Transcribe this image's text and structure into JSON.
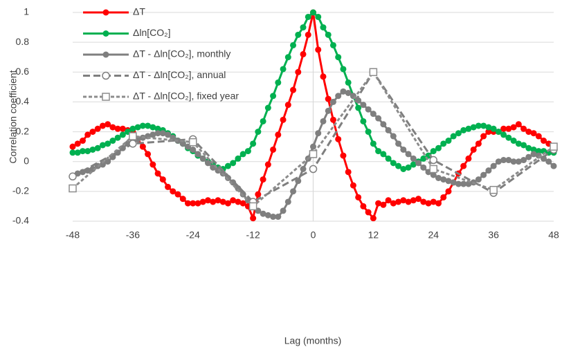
{
  "chart_data": {
    "type": "line",
    "x_label": "Lag (months)",
    "y_label": "Correlation coefficient",
    "xlim": [
      -48,
      48
    ],
    "xticks": [
      -48,
      -36,
      -24,
      -12,
      0,
      12,
      24,
      36,
      48
    ],
    "ylim": [
      -0.4,
      1
    ],
    "yticks": [
      -0.4,
      -0.2,
      0,
      0.2,
      0.4,
      0.6,
      0.8,
      1
    ],
    "grid": true,
    "legend": "upper-left",
    "x": [
      -48,
      -47,
      -46,
      -45,
      -44,
      -43,
      -42,
      -41,
      -40,
      -39,
      -38,
      -37,
      -36,
      -35,
      -34,
      -33,
      -32,
      -31,
      -30,
      -29,
      -28,
      -27,
      -26,
      -25,
      -24,
      -23,
      -22,
      -21,
      -20,
      -19,
      -18,
      -17,
      -16,
      -15,
      -14,
      -13,
      -12,
      -11,
      -10,
      -9,
      -8,
      -7,
      -6,
      -5,
      -4,
      -3,
      -2,
      -1,
      0,
      1,
      2,
      3,
      4,
      5,
      6,
      7,
      8,
      9,
      10,
      11,
      12,
      13,
      14,
      15,
      16,
      17,
      18,
      19,
      20,
      21,
      22,
      23,
      24,
      25,
      26,
      27,
      28,
      29,
      30,
      31,
      32,
      33,
      34,
      35,
      36,
      37,
      38,
      39,
      40,
      41,
      42,
      43,
      44,
      45,
      46,
      47,
      48
    ],
    "series": [
      {
        "name": "ΔT",
        "color": "#ff0000",
        "dash": "solid",
        "marker": "filled-circle",
        "values": [
          0.1,
          0.12,
          0.14,
          0.18,
          0.2,
          0.22,
          0.24,
          0.25,
          0.23,
          0.22,
          0.22,
          0.21,
          0.2,
          0.15,
          0.1,
          0.05,
          -0.02,
          -0.08,
          -0.12,
          -0.17,
          -0.2,
          -0.22,
          -0.25,
          -0.28,
          -0.28,
          -0.28,
          -0.27,
          -0.26,
          -0.27,
          -0.26,
          -0.27,
          -0.28,
          -0.26,
          -0.27,
          -0.28,
          -0.3,
          -0.38,
          -0.22,
          -0.12,
          -0.02,
          0.08,
          0.18,
          0.28,
          0.38,
          0.48,
          0.6,
          0.72,
          0.85,
          1.0,
          0.75,
          0.57,
          0.42,
          0.28,
          0.15,
          0.04,
          -0.07,
          -0.16,
          -0.24,
          -0.3,
          -0.34,
          -0.38,
          -0.28,
          -0.29,
          -0.26,
          -0.28,
          -0.27,
          -0.26,
          -0.27,
          -0.26,
          -0.25,
          -0.27,
          -0.28,
          -0.27,
          -0.28,
          -0.24,
          -0.2,
          -0.14,
          -0.08,
          -0.03,
          0.02,
          0.08,
          0.12,
          0.17,
          0.2,
          0.2,
          0.2,
          0.22,
          0.22,
          0.23,
          0.25,
          0.22,
          0.2,
          0.19,
          0.17,
          0.14,
          0.12,
          0.1
        ]
      },
      {
        "name": "Δln[CO₂]",
        "color": "#00b050",
        "dash": "solid",
        "marker": "filled-circle",
        "values": [
          0.06,
          0.06,
          0.07,
          0.07,
          0.08,
          0.09,
          0.11,
          0.12,
          0.14,
          0.16,
          0.18,
          0.2,
          0.22,
          0.23,
          0.24,
          0.24,
          0.23,
          0.22,
          0.21,
          0.19,
          0.17,
          0.14,
          0.12,
          0.09,
          0.07,
          0.04,
          0.02,
          0.0,
          -0.02,
          -0.04,
          -0.05,
          -0.03,
          -0.01,
          0.02,
          0.05,
          0.07,
          0.12,
          0.2,
          0.27,
          0.36,
          0.44,
          0.53,
          0.62,
          0.7,
          0.78,
          0.85,
          0.9,
          0.97,
          1.0,
          0.97,
          0.9,
          0.85,
          0.78,
          0.7,
          0.62,
          0.53,
          0.44,
          0.36,
          0.27,
          0.2,
          0.12,
          0.07,
          0.05,
          0.02,
          -0.01,
          -0.03,
          -0.05,
          -0.04,
          -0.02,
          0.0,
          0.02,
          0.04,
          0.07,
          0.09,
          0.12,
          0.14,
          0.17,
          0.19,
          0.21,
          0.22,
          0.23,
          0.24,
          0.24,
          0.23,
          0.22,
          0.2,
          0.18,
          0.16,
          0.14,
          0.12,
          0.11,
          0.09,
          0.08,
          0.07,
          0.07,
          0.06,
          0.06
        ]
      },
      {
        "name": "ΔT - Δln[CO₂], monthly",
        "color": "#7f7f7f",
        "dash": "solid",
        "marker": "filled-circle",
        "values": [
          -0.1,
          -0.08,
          -0.07,
          -0.06,
          -0.05,
          -0.03,
          -0.02,
          0.0,
          0.03,
          0.06,
          0.09,
          0.12,
          0.14,
          0.15,
          0.16,
          0.17,
          0.18,
          0.19,
          0.19,
          0.18,
          0.16,
          0.14,
          0.12,
          0.1,
          0.08,
          0.05,
          0.02,
          -0.01,
          -0.04,
          -0.06,
          -0.08,
          -0.11,
          -0.14,
          -0.18,
          -0.22,
          -0.26,
          -0.3,
          -0.33,
          -0.35,
          -0.36,
          -0.37,
          -0.37,
          -0.33,
          -0.27,
          -0.2,
          -0.13,
          -0.05,
          0.02,
          0.1,
          0.19,
          0.27,
          0.34,
          0.4,
          0.44,
          0.47,
          0.46,
          0.44,
          0.41,
          0.38,
          0.35,
          0.32,
          0.29,
          0.25,
          0.21,
          0.17,
          0.12,
          0.08,
          0.05,
          0.02,
          -0.01,
          -0.04,
          -0.07,
          -0.09,
          -0.11,
          -0.12,
          -0.13,
          -0.14,
          -0.15,
          -0.15,
          -0.15,
          -0.14,
          -0.12,
          -0.09,
          -0.06,
          -0.03,
          0.0,
          0.01,
          0.01,
          0.0,
          0.0,
          0.01,
          0.03,
          0.05,
          0.04,
          0.02,
          0.0,
          -0.03
        ]
      },
      {
        "name": "ΔT - Δln[CO₂], annual",
        "color": "#7f7f7f",
        "dash": "long",
        "marker": "open-circle",
        "x": [
          -48,
          -36,
          -24,
          -12,
          0,
          12,
          24,
          36,
          48
        ],
        "values": [
          -0.1,
          0.12,
          0.15,
          -0.27,
          -0.05,
          0.6,
          0.01,
          -0.21,
          0.08
        ]
      },
      {
        "name": "ΔT - Δln[CO₂], fixed year",
        "color": "#8c8c8c",
        "dash": "short",
        "marker": "open-square",
        "x": [
          -48,
          -36,
          -24,
          -12,
          0,
          12,
          24,
          36,
          48
        ],
        "values": [
          -0.18,
          0.17,
          0.13,
          -0.3,
          0.05,
          0.6,
          -0.05,
          -0.19,
          0.1
        ]
      }
    ]
  }
}
